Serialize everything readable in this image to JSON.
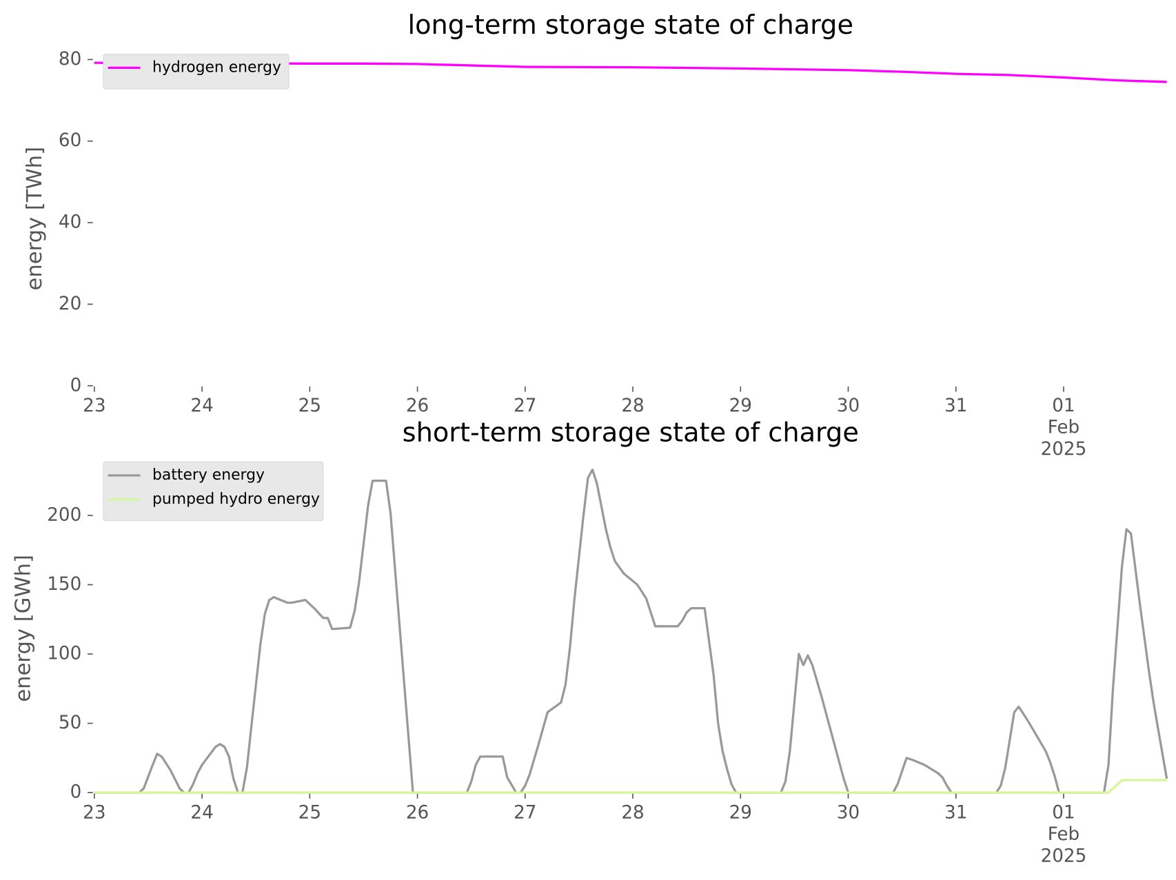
{
  "chart_data": [
    {
      "type": "line",
      "title": "long-term storage state of charge",
      "y_label": "energy [TWh]",
      "x": [
        "2025-01-23 00:00",
        "2025-01-24 00:00",
        "2025-01-25 00:00",
        "2025-01-25 12:00",
        "2025-01-26 00:00",
        "2025-01-27 00:00",
        "2025-01-28 00:00",
        "2025-01-29 00:00",
        "2025-01-30 00:00",
        "2025-01-30 12:00",
        "2025-01-31 00:00",
        "2025-01-31 12:00",
        "2025-02-01 00:00",
        "2025-02-01 12:00",
        "2025-02-01 23:00"
      ],
      "series": [
        {
          "name": "hydrogen energy",
          "color": "#ff00ff",
          "values": [
            79.2,
            79.1,
            79,
            79,
            78.9,
            78.2,
            78.1,
            77.8,
            77.4,
            77,
            76.5,
            76.2,
            75.6,
            74.9,
            74.5
          ]
        }
      ],
      "xlim": [
        "2025-01-23 00:00",
        "2025-02-01 23:00"
      ],
      "ylim": [
        0,
        82
      ],
      "xticks": [
        {
          "value": "2025-01-23 00:00",
          "label": "23"
        },
        {
          "value": "2025-01-24 00:00",
          "label": "24"
        },
        {
          "value": "2025-01-25 00:00",
          "label": "25"
        },
        {
          "value": "2025-01-26 00:00",
          "label": "26"
        },
        {
          "value": "2025-01-27 00:00",
          "label": "27"
        },
        {
          "value": "2025-01-28 00:00",
          "label": "28"
        },
        {
          "value": "2025-01-29 00:00",
          "label": "29"
        },
        {
          "value": "2025-01-30 00:00",
          "label": "30"
        },
        {
          "value": "2025-01-31 00:00",
          "label": "31"
        },
        {
          "value": "2025-02-01 00:00",
          "label": "01\nFeb\n2025"
        }
      ],
      "yticks": [
        0,
        20,
        40,
        60,
        80
      ],
      "legend": "upper left",
      "grid": false
    },
    {
      "type": "line",
      "title": "short-term storage state of charge",
      "y_label": "energy [GWh]",
      "x": [
        "2025-01-23 00:00",
        "2025-01-23 10:00",
        "2025-01-23 11:00",
        "2025-01-23 13:00",
        "2025-01-23 14:00",
        "2025-01-23 15:00",
        "2025-01-23 17:00",
        "2025-01-23 19:00",
        "2025-01-23 20:00",
        "2025-01-23 21:00",
        "2025-01-23 22:00",
        "2025-01-23 23:00",
        "2025-01-24 00:00",
        "2025-01-24 03:00",
        "2025-01-24 04:00",
        "2025-01-24 05:00",
        "2025-01-24 06:00",
        "2025-01-24 07:00",
        "2025-01-24 08:00",
        "2025-01-24 09:00",
        "2025-01-24 10:00",
        "2025-01-24 11:00",
        "2025-01-24 13:00",
        "2025-01-24 14:00",
        "2025-01-24 15:00",
        "2025-01-24 16:00",
        "2025-01-24 19:00",
        "2025-01-24 20:00",
        "2025-01-24 23:00",
        "2025-01-25 01:00",
        "2025-01-25 03:00",
        "2025-01-25 04:00",
        "2025-01-25 05:00",
        "2025-01-25 09:00",
        "2025-01-25 10:00",
        "2025-01-25 11:00",
        "2025-01-25 13:00",
        "2025-01-25 14:00",
        "2025-01-25 17:00",
        "2025-01-25 18:00",
        "2025-01-25 23:00",
        "2025-01-26 11:00",
        "2025-01-26 12:00",
        "2025-01-26 13:00",
        "2025-01-26 14:00",
        "2025-01-26 19:00",
        "2025-01-26 20:00",
        "2025-01-26 22:00",
        "2025-01-26 23:00",
        "2025-01-27 00:00",
        "2025-01-27 01:00",
        "2025-01-27 03:00",
        "2025-01-27 05:00",
        "2025-01-27 08:00",
        "2025-01-27 09:00",
        "2025-01-27 10:00",
        "2025-01-27 11:00",
        "2025-01-27 13:00",
        "2025-01-27 14:00",
        "2025-01-27 15:00",
        "2025-01-27 16:00",
        "2025-01-27 18:00",
        "2025-01-27 19:00",
        "2025-01-27 20:00",
        "2025-01-27 22:00",
        "2025-01-28 01:00",
        "2025-01-28 03:00",
        "2025-01-28 04:00",
        "2025-01-28 05:00",
        "2025-01-28 10:00",
        "2025-01-28 11:00",
        "2025-01-28 12:00",
        "2025-01-28 13:00",
        "2025-01-28 16:00",
        "2025-01-28 18:00",
        "2025-01-28 19:00",
        "2025-01-28 20:00",
        "2025-01-28 21:00",
        "2025-01-28 22:00",
        "2025-01-28 23:00",
        "2025-01-29 09:00",
        "2025-01-29 10:00",
        "2025-01-29 11:00",
        "2025-01-29 13:00",
        "2025-01-29 14:00",
        "2025-01-29 15:00",
        "2025-01-29 16:00",
        "2025-01-29 18:00",
        "2025-01-29 20:00",
        "2025-01-29 23:00",
        "2025-01-30 00:00",
        "2025-01-30 10:00",
        "2025-01-30 11:00",
        "2025-01-30 13:00",
        "2025-01-30 14:00",
        "2025-01-30 17:00",
        "2025-01-30 20:00",
        "2025-01-30 21:00",
        "2025-01-30 22:00",
        "2025-01-30 23:00",
        "2025-01-31 09:00",
        "2025-01-31 10:00",
        "2025-01-31 11:00",
        "2025-01-31 13:00",
        "2025-01-31 14:00",
        "2025-01-31 16:00",
        "2025-01-31 20:00",
        "2025-01-31 21:00",
        "2025-01-31 22:00",
        "2025-01-31 23:00",
        "2025-02-01 09:00",
        "2025-02-01 10:00",
        "2025-02-01 11:00",
        "2025-02-01 13:00",
        "2025-02-01 14:00",
        "2025-02-01 15:00",
        "2025-02-01 17:00",
        "2025-02-01 19:00",
        "2025-02-01 20:00",
        "2025-02-01 21:00",
        "2025-02-01 23:00"
      ],
      "series": [
        {
          "name": "battery energy",
          "color": "#999999",
          "values": [
            0,
            0,
            3,
            20,
            28,
            26,
            16,
            3,
            0,
            0,
            6,
            14,
            20,
            33,
            35,
            33,
            26,
            10,
            0,
            0,
            18,
            48,
            107,
            129,
            139,
            141,
            137,
            137,
            139,
            133,
            126,
            126,
            118,
            119,
            131,
            152,
            207,
            225,
            225,
            202,
            0,
            0,
            8,
            20,
            26,
            26,
            11,
            0,
            0,
            5,
            13,
            35,
            58,
            65,
            78,
            105,
            140,
            200,
            227,
            233,
            223,
            190,
            177,
            167,
            158,
            150,
            140,
            130,
            120,
            120,
            124,
            130,
            133,
            133,
            85,
            50,
            30,
            17,
            6,
            0,
            0,
            8,
            30,
            100,
            92,
            99,
            92,
            70,
            46,
            10,
            0,
            0,
            6,
            25,
            24,
            20,
            14,
            11,
            5,
            0,
            0,
            5,
            18,
            58,
            62,
            52,
            30,
            22,
            12,
            0,
            0,
            20,
            75,
            163,
            190,
            187,
            136,
            88,
            66,
            47,
            10
          ]
        },
        {
          "name": "pumped hydro energy",
          "color": "#d4f79a",
          "values": [
            0,
            0,
            0,
            0,
            0,
            0,
            0,
            0,
            0,
            0,
            0,
            0,
            0,
            0,
            0,
            0,
            0,
            0,
            0,
            0,
            0,
            0,
            0,
            0,
            0,
            0,
            0,
            0,
            0,
            0,
            0,
            0,
            0,
            0,
            0,
            0,
            0,
            0,
            0,
            0,
            0,
            0,
            0,
            0,
            0,
            0,
            0,
            0,
            0,
            0,
            0,
            0,
            0,
            0,
            0,
            0,
            0,
            0,
            0,
            0,
            0,
            0,
            0,
            0,
            0,
            0,
            0,
            0,
            0,
            0,
            0,
            0,
            0,
            0,
            0,
            0,
            0,
            0,
            0,
            0,
            0,
            0,
            0,
            0,
            0,
            0,
            0,
            0,
            0,
            0,
            0,
            0,
            0,
            0,
            0,
            0,
            0,
            0,
            0,
            0,
            0,
            0,
            0,
            0,
            0,
            0,
            0,
            0,
            0,
            0,
            0,
            0,
            3,
            9,
            9,
            9,
            9,
            9,
            9,
            9,
            9
          ]
        }
      ],
      "xlim": [
        "2025-01-23 00:00",
        "2025-02-01 23:00"
      ],
      "ylim": [
        0,
        237
      ],
      "xticks": [
        {
          "value": "2025-01-23 00:00",
          "label": "23"
        },
        {
          "value": "2025-01-24 00:00",
          "label": "24"
        },
        {
          "value": "2025-01-25 00:00",
          "label": "25"
        },
        {
          "value": "2025-01-26 00:00",
          "label": "26"
        },
        {
          "value": "2025-01-27 00:00",
          "label": "27"
        },
        {
          "value": "2025-01-28 00:00",
          "label": "28"
        },
        {
          "value": "2025-01-29 00:00",
          "label": "29"
        },
        {
          "value": "2025-01-30 00:00",
          "label": "30"
        },
        {
          "value": "2025-01-31 00:00",
          "label": "31"
        },
        {
          "value": "2025-02-01 00:00",
          "label": "01\nFeb\n2025"
        }
      ],
      "yticks": [
        0,
        50,
        100,
        150,
        200
      ],
      "legend": "upper left",
      "grid": false
    }
  ]
}
